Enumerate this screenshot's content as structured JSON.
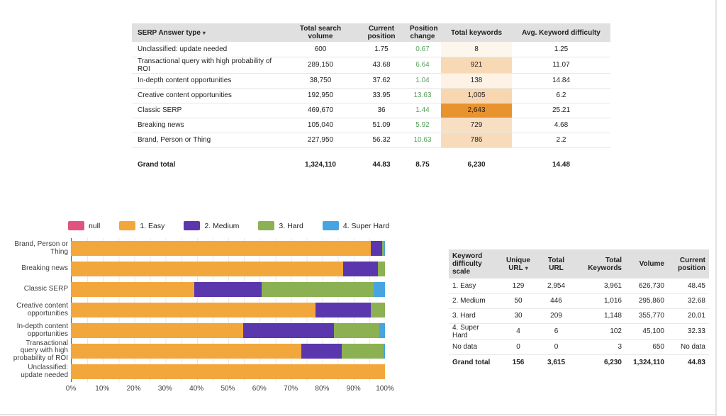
{
  "serp_table": {
    "columns": [
      {
        "label": "SERP Answer type",
        "sort": true
      },
      {
        "label": "Total search volume",
        "sort": false
      },
      {
        "label": "Current position",
        "sort": false
      },
      {
        "label": "Position change",
        "sort": false
      },
      {
        "label": "Total keywords",
        "sort": false
      },
      {
        "label": "Avg. Keyword difficulty",
        "sort": false
      }
    ],
    "rows": [
      {
        "cells": [
          "Unclassified: update needed",
          "600",
          "1.75",
          "0.67",
          "8",
          "1.25"
        ],
        "change_green": true,
        "keywords_bg": "#fdf6ed"
      },
      {
        "cells": [
          "Transactional query with high probability of ROI",
          "289,150",
          "43.68",
          "6.64",
          "921",
          "11.07"
        ],
        "change_green": true,
        "keywords_bg": "#f8d9b6"
      },
      {
        "cells": [
          "In-depth content opportunities",
          "38,750",
          "37.62",
          "1.04",
          "138",
          "14.84"
        ],
        "change_green": true,
        "keywords_bg": "#fdf2e4"
      },
      {
        "cells": [
          "Creative content opportunities",
          "192,950",
          "33.95",
          "13.63",
          "1,005",
          "6.2"
        ],
        "change_green": true,
        "keywords_bg": "#f7d6b0"
      },
      {
        "cells": [
          "Classic SERP",
          "469,670",
          "36",
          "1.44",
          "2,643",
          "25.21"
        ],
        "change_green": true,
        "keywords_bg": "#e9932f"
      },
      {
        "cells": [
          "Breaking news",
          "105,040",
          "51.09",
          "5.92",
          "729",
          "4.68"
        ],
        "change_green": true,
        "keywords_bg": "#f9dfc2"
      },
      {
        "cells": [
          "Brand, Person or Thing",
          "227,950",
          "56.32",
          "10.63",
          "786",
          "2.2"
        ],
        "change_green": true,
        "keywords_bg": "#f8dbba"
      }
    ],
    "grand_total": {
      "cells": [
        "Grand total",
        "1,324,110",
        "44.83",
        "8.75",
        "6,230",
        "14.48"
      ]
    }
  },
  "chart_data": {
    "type": "bar",
    "stacked": true,
    "orientation": "horizontal",
    "unit": "percent",
    "xlim": [
      0,
      100
    ],
    "grid": "every 5%",
    "legend_position": "top",
    "categories": [
      "Brand, Person or Thing",
      "Breaking news",
      "Classic SERP",
      "Creative content opportunities",
      "In-depth content opportunities",
      "Transactional query with high probability of ROI",
      "Unclassified: update needed"
    ],
    "series": [
      {
        "name": "null",
        "key": "null",
        "color": "#e0537e",
        "values": [
          0,
          0,
          0,
          0,
          0,
          0,
          0
        ]
      },
      {
        "name": "1. Easy",
        "key": "easy",
        "color": "#f2a73d",
        "values": [
          95.4,
          86.7,
          39.2,
          77.9,
          54.9,
          73.3,
          100
        ]
      },
      {
        "name": "2. Medium",
        "key": "medium",
        "color": "#5b37ae",
        "values": [
          3.6,
          11.0,
          21.5,
          17.5,
          28.9,
          12.9,
          0
        ]
      },
      {
        "name": "3. Hard",
        "key": "hard",
        "color": "#8cb153",
        "values": [
          0.7,
          2.3,
          35.8,
          4.6,
          14.5,
          13.3,
          0
        ]
      },
      {
        "name": "4. Super Hard",
        "key": "super-hard",
        "color": "#47a4e0",
        "values": [
          0.3,
          0,
          3.5,
          0,
          1.7,
          0.5,
          0
        ]
      }
    ],
    "x_ticks": [
      "0%",
      "10%",
      "20%",
      "30%",
      "40%",
      "50%",
      "60%",
      "70%",
      "80%",
      "90%",
      "100%"
    ]
  },
  "difficulty_table": {
    "columns": [
      {
        "label": "Keyword difficulty scale",
        "sort": false
      },
      {
        "label": "Unique URL",
        "sort": true
      },
      {
        "label": "Total URL",
        "sort": false
      },
      {
        "label": "Total Keywords",
        "sort": false
      },
      {
        "label": "Volume",
        "sort": false
      },
      {
        "label": "Current position",
        "sort": false
      }
    ],
    "rows": [
      {
        "cells": [
          "1. Easy",
          "129",
          "2,954",
          "3,961",
          "626,730",
          "48.45"
        ]
      },
      {
        "cells": [
          "2. Medium",
          "50",
          "446",
          "1,016",
          "295,860",
          "32.68"
        ]
      },
      {
        "cells": [
          "3. Hard",
          "30",
          "209",
          "1,148",
          "355,770",
          "20.01"
        ]
      },
      {
        "cells": [
          "4. Super Hard",
          "4",
          "6",
          "102",
          "45,100",
          "32.33"
        ]
      },
      {
        "cells": [
          "No data",
          "0",
          "0",
          "3",
          "650",
          "No data"
        ]
      }
    ],
    "grand_total": {
      "cells": [
        "Grand total",
        "156",
        "3,615",
        "6,230",
        "1,324,110",
        "44.83"
      ]
    }
  }
}
